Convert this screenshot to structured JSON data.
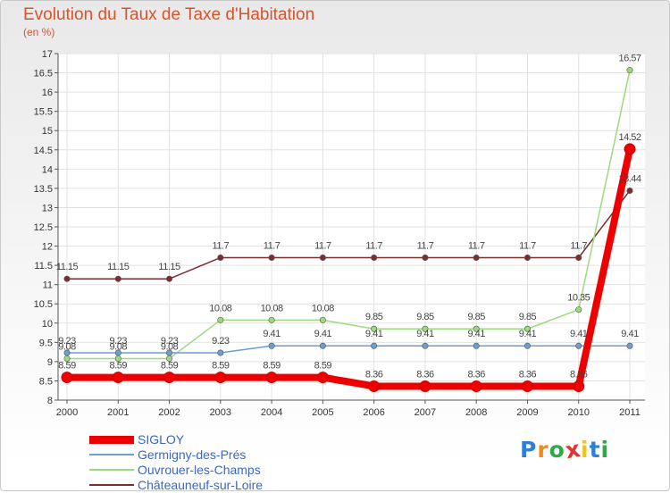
{
  "title": "Evolution du Taux de Taxe d'Habitation",
  "subtitle": "(en %)",
  "logo": {
    "letters": [
      "P",
      "r",
      "o",
      "x",
      "i",
      "t",
      "i"
    ],
    "colors": [
      "#2f7fd6",
      "#f08a1f",
      "#2fa84a",
      "#e33333",
      "#f0c419",
      "#2f7fd6",
      "#2fa84a"
    ]
  },
  "chart_data": {
    "type": "line",
    "title": "Evolution du Taux de Taxe d'Habitation",
    "ylabel": "(en %)",
    "x": [
      "2000",
      "2001",
      "2002",
      "2003",
      "2004",
      "2005",
      "2006",
      "2007",
      "2008",
      "2009",
      "2010",
      "2011"
    ],
    "yticks": [
      "8",
      "8.5",
      "9",
      "9.5",
      "10",
      "10.5",
      "11",
      "11.5",
      "12",
      "12.5",
      "13",
      "13.5",
      "14",
      "14.5",
      "15",
      "15.5",
      "16",
      "16.5",
      "17"
    ],
    "ylim": [
      8,
      17
    ],
    "grid": true,
    "legend_position": "bottom-left",
    "series": [
      {
        "name": "SIGLOY",
        "color": "#ee0000",
        "values": [
          8.59,
          8.59,
          8.59,
          8.59,
          8.59,
          8.59,
          8.36,
          8.36,
          8.36,
          8.36,
          8.36,
          14.52
        ],
        "labels": [
          "8.59",
          "8.59",
          "8.59",
          "8.59",
          "8.59",
          "8.59",
          "8.36",
          "8.36",
          "8.36",
          "8.36",
          "8.36",
          "14.52"
        ]
      },
      {
        "name": "Germigny-des-Prés",
        "color": "#6b9ed2",
        "values": [
          9.23,
          9.23,
          9.23,
          9.23,
          9.41,
          9.41,
          9.41,
          9.41,
          9.41,
          9.41,
          9.41,
          9.41
        ],
        "labels": [
          "9.23",
          "9.23",
          "9.23",
          "9.23",
          "9.41",
          "9.41",
          "9.41",
          "9.41",
          "9.41",
          "9.41",
          "9.41",
          "9.41"
        ]
      },
      {
        "name": "Ouvrouer-les-Champs",
        "color": "#9ed97e",
        "values": [
          9.08,
          9.08,
          9.08,
          10.08,
          10.08,
          10.08,
          9.85,
          9.85,
          9.85,
          9.85,
          10.35,
          16.57
        ],
        "labels": [
          "9.08",
          "9.08",
          "9.08",
          "10.08",
          "10.08",
          "10.08",
          "9.85",
          "9.85",
          "9.85",
          "9.85",
          "10.35",
          "16.57"
        ]
      },
      {
        "name": "Châteauneuf-sur-Loire",
        "color": "#7a2e2e",
        "values": [
          11.15,
          11.15,
          11.15,
          11.7,
          11.7,
          11.7,
          11.7,
          11.7,
          11.7,
          11.7,
          11.7,
          13.44
        ],
        "labels": [
          "11.15",
          "11.15",
          "11.15",
          "11.7",
          "11.7",
          "11.7",
          "11.7",
          "11.7",
          "11.7",
          "11.7",
          "11.7",
          "13.44"
        ]
      }
    ]
  }
}
